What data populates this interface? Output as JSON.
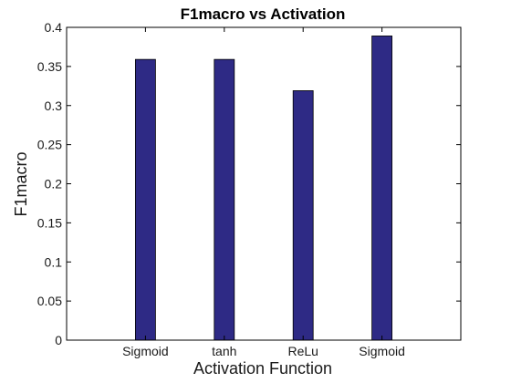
{
  "chart_data": {
    "type": "bar",
    "title": "F1macro vs Activation",
    "xlabel": "Activation Function",
    "ylabel": "F1macro",
    "categories": [
      "Sigmoid",
      "tanh",
      "ReLu",
      "Sigmoid"
    ],
    "values": [
      0.359,
      0.359,
      0.319,
      0.389
    ],
    "ylim": [
      0,
      0.4
    ],
    "yticks": [
      0,
      0.05,
      0.1,
      0.15,
      0.2,
      0.25,
      0.3,
      0.35,
      0.4
    ],
    "ytick_labels": [
      "0",
      "0.05",
      "0.1",
      "0.15",
      "0.2",
      "0.25",
      "0.3",
      "0.35",
      "0.4"
    ],
    "grid": false,
    "legend": "none",
    "colors": {
      "bar": "#2e2a85",
      "bar_edge": "#000000",
      "axes": "#000000"
    }
  }
}
